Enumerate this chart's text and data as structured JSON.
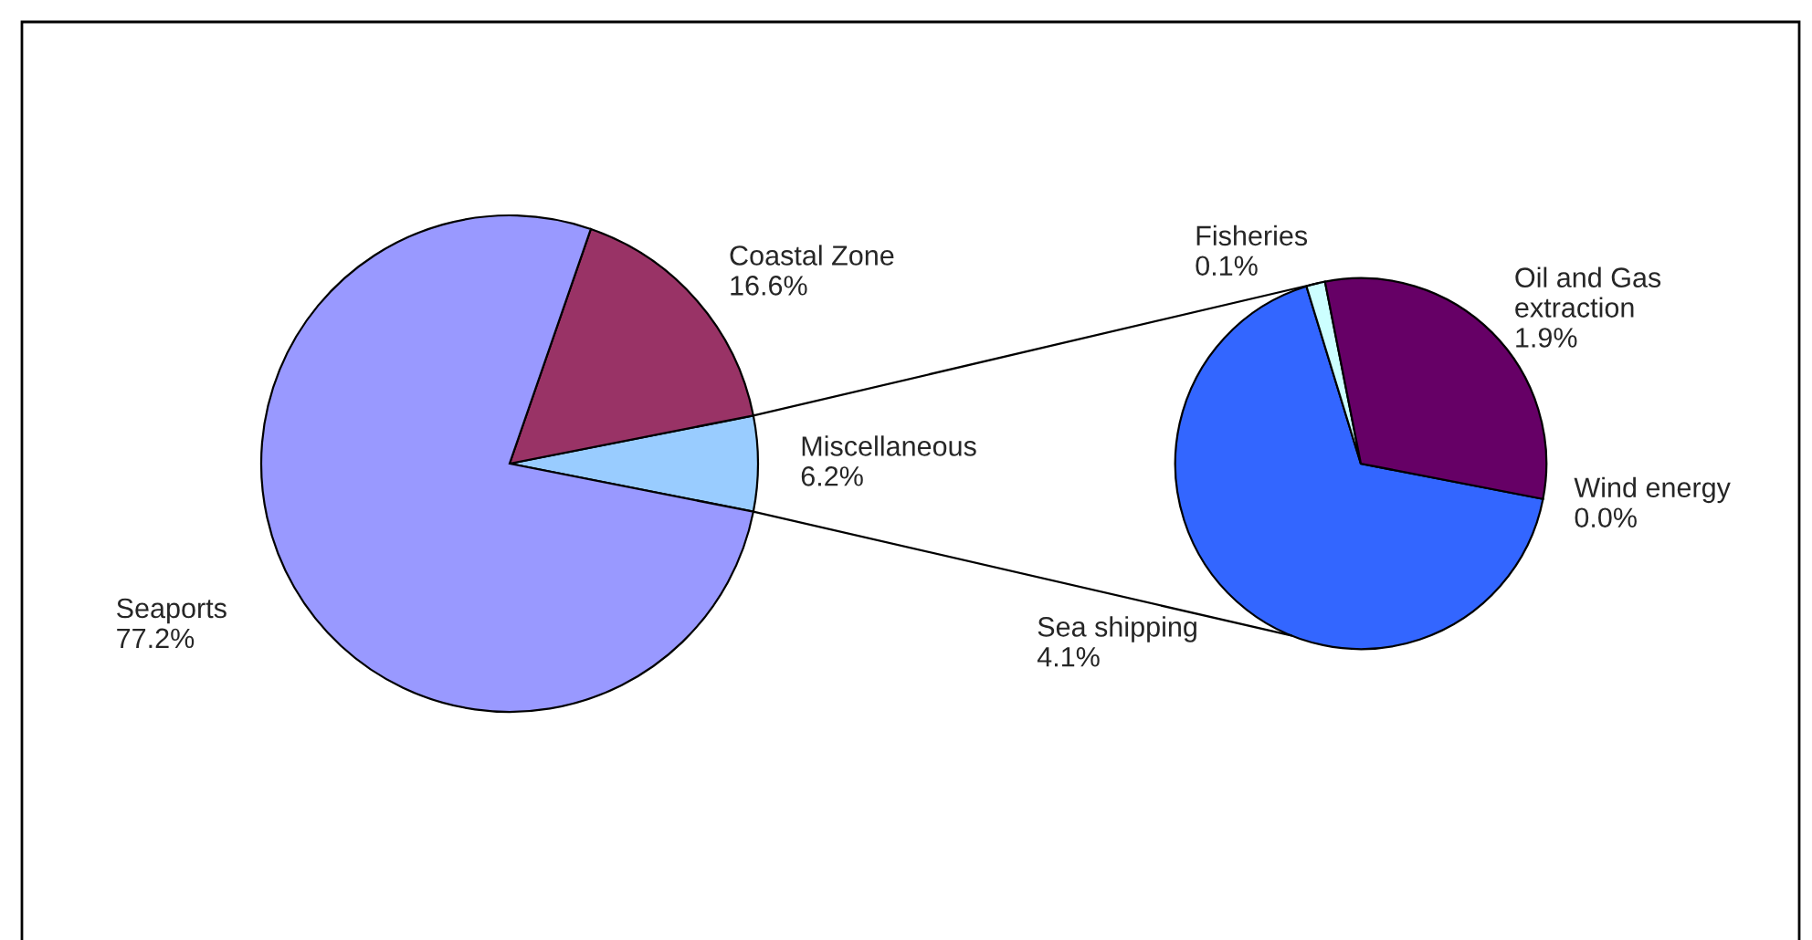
{
  "chart_data": [
    {
      "type": "pie",
      "categories": [
        "Miscellaneous",
        "Coastal Zone",
        "Seaports"
      ],
      "values": [
        6.2,
        16.6,
        77.2
      ],
      "colors": [
        "#99ccff",
        "#993366",
        "#9999ff"
      ],
      "value_labels": [
        "6.2%",
        "16.6%",
        "77.2%"
      ]
    },
    {
      "type": "pie",
      "categories": [
        "Wind energy",
        "Sea shipping",
        "Fisheries",
        "Oil and Gas\nextraction"
      ],
      "values": [
        0.0,
        4.1,
        0.1,
        1.9
      ],
      "colors": [
        "#ffff99",
        "#3366ff",
        "#ccffff",
        "#660066"
      ],
      "value_labels": [
        "0.0%",
        "4.1%",
        "0.1%",
        "1.9%"
      ]
    }
  ]
}
